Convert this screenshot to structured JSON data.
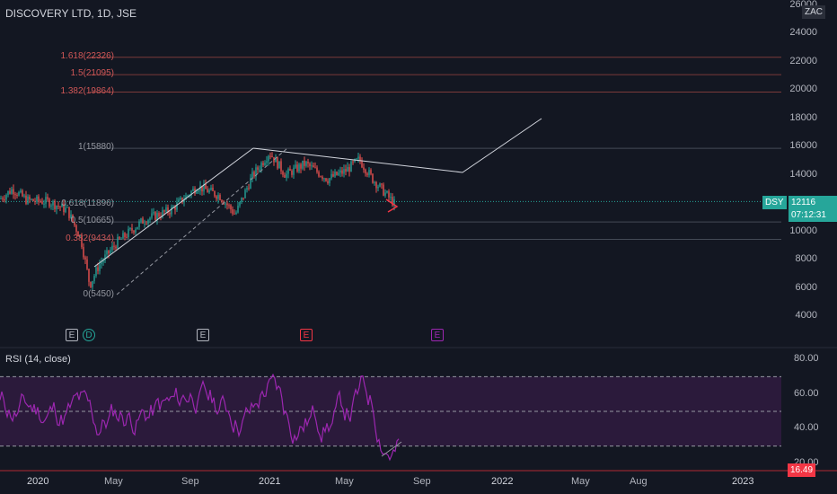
{
  "header": {
    "symbol": "DISCOVERY LTD, 1D, JSE",
    "currency": "ZAC"
  },
  "price_axis": {
    "ticks": [
      "26000",
      "24000",
      "22000",
      "20000",
      "18000",
      "16000",
      "14000",
      "12000",
      "10000",
      "8000",
      "6000",
      "4000"
    ]
  },
  "price_badge": {
    "ticker": "DSY",
    "price": "12116",
    "countdown": "07:12:31"
  },
  "fib_levels": [
    {
      "text": "1.618(22326)",
      "value": 22326
    },
    {
      "text": "1.5(21095)",
      "value": 21095
    },
    {
      "text": "1.382(19864)",
      "value": 19864
    },
    {
      "text": "1(15880)",
      "value": 15880
    },
    {
      "text": "0.618(11896)",
      "value": 11896
    },
    {
      "text": "0.5(10665)",
      "value": 10665
    },
    {
      "text": "0.382(9434)",
      "value": 9434
    },
    {
      "text": "0(5450)",
      "value": 5450
    }
  ],
  "events": [
    {
      "label": "E",
      "color": "#b2b5be"
    },
    {
      "label": "D",
      "color": "#26a69a"
    },
    {
      "label": "E",
      "color": "#b2b5be"
    },
    {
      "label": "E",
      "color": "#f23645"
    },
    {
      "label": "E",
      "color": "#9c27b0"
    }
  ],
  "rsi": {
    "title": "RSI (14, close)",
    "ticks": [
      "80.00",
      "60.00",
      "40.00",
      "20.00"
    ],
    "current": "16.49"
  },
  "time_axis": {
    "labels": [
      "2020",
      "May",
      "Sep",
      "2021",
      "May",
      "Sep",
      "2022",
      "May",
      "Aug",
      "2023"
    ]
  },
  "colors": {
    "up": "#26a69a",
    "down": "#ef5350",
    "rsi": "#9c27b0",
    "band": "#2b1a3b",
    "background": "#131722"
  }
}
